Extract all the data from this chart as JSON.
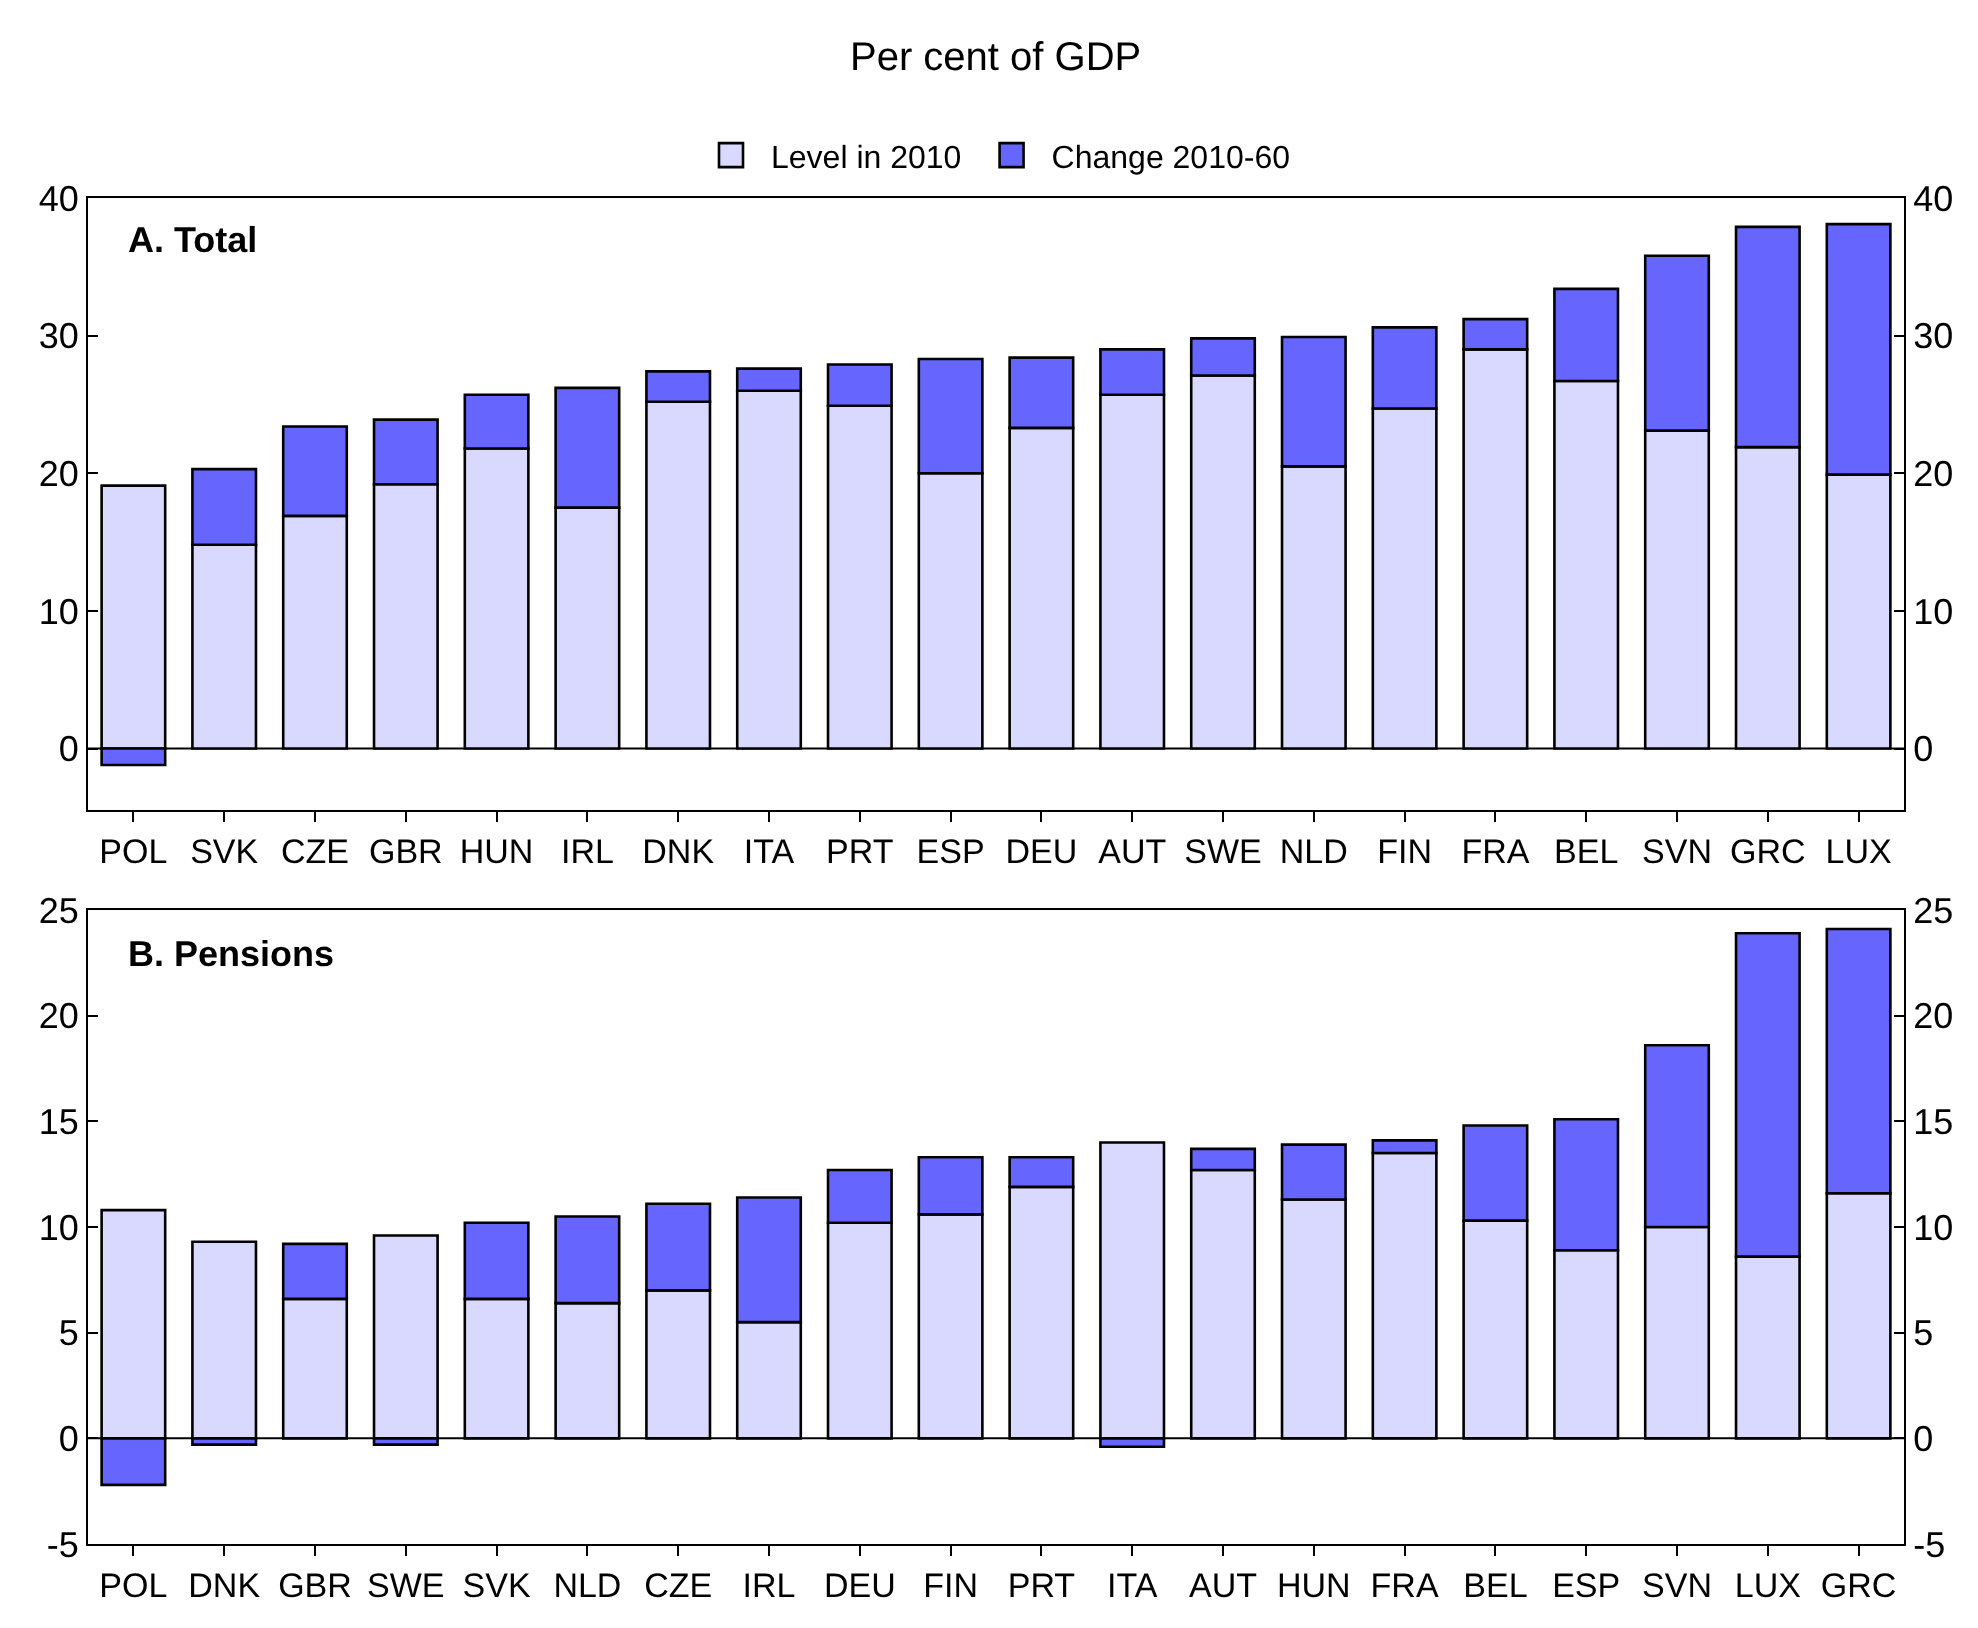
{
  "chart_data": [
    {
      "type": "bar",
      "title": "Per cent of GDP",
      "annotations": [
        "A. Total"
      ],
      "stacked": true,
      "legend": "top",
      "grid": false,
      "categories": [
        "POL",
        "SVK",
        "CZE",
        "GBR",
        "HUN",
        "IRL",
        "DNK",
        "ITA",
        "PRT",
        "ESP",
        "DEU",
        "AUT",
        "SWE",
        "NLD",
        "FIN",
        "FRA",
        "BEL",
        "SVN",
        "GRC",
        "LUX"
      ],
      "series": [
        {
          "name": "Level in 2010",
          "color": "#d9d9ff",
          "values": [
            19.1,
            14.8,
            16.9,
            19.2,
            21.8,
            17.5,
            25.2,
            26.0,
            24.9,
            20.0,
            23.3,
            25.7,
            27.1,
            20.5,
            24.7,
            29.0,
            26.7,
            23.1,
            21.9,
            19.9
          ]
        },
        {
          "name": "Change 2010-60",
          "color": "#6666ff",
          "values": [
            -1.2,
            5.5,
            6.5,
            4.7,
            3.9,
            8.7,
            2.2,
            1.6,
            3.0,
            8.3,
            5.1,
            3.3,
            2.7,
            9.4,
            5.9,
            2.2,
            6.7,
            12.7,
            16.0,
            18.2
          ]
        }
      ],
      "ref_lines": [
        {
          "axis": "y",
          "value": 0
        }
      ],
      "ylim": [
        -4.5,
        40
      ],
      "yticks": [
        0,
        10,
        20,
        30,
        40
      ],
      "y2lim": [
        -4.5,
        40
      ],
      "y2ticks": [
        0,
        10,
        20,
        30,
        40
      ]
    },
    {
      "type": "bar",
      "annotations": [
        "B. Pensions"
      ],
      "stacked": true,
      "grid": false,
      "categories": [
        "POL",
        "DNK",
        "GBR",
        "SWE",
        "SVK",
        "NLD",
        "CZE",
        "IRL",
        "DEU",
        "FIN",
        "PRT",
        "ITA",
        "AUT",
        "HUN",
        "FRA",
        "BEL",
        "ESP",
        "SVN",
        "LUX",
        "GRC"
      ],
      "series": [
        {
          "name": "Level in 2010",
          "color": "#d9d9ff",
          "values": [
            10.8,
            9.3,
            6.6,
            9.6,
            6.6,
            6.4,
            7.0,
            5.5,
            10.2,
            10.6,
            11.9,
            14.0,
            12.7,
            11.3,
            13.5,
            10.3,
            8.9,
            10.0,
            8.6,
            11.6
          ]
        },
        {
          "name": "Change 2010-60",
          "color": "#6666ff",
          "values": [
            -2.2,
            -0.3,
            2.6,
            -0.3,
            3.6,
            4.1,
            4.1,
            5.9,
            2.5,
            2.7,
            1.4,
            -0.4,
            1.0,
            2.6,
            0.6,
            4.5,
            6.2,
            8.6,
            15.3,
            12.5
          ]
        }
      ],
      "ref_lines": [
        {
          "axis": "y",
          "value": 0
        }
      ],
      "ylim": [
        -5,
        25
      ],
      "yticks": [
        -5,
        0,
        5,
        10,
        15,
        20,
        25
      ],
      "y2lim": [
        -5,
        25
      ],
      "y2ticks": [
        -5,
        0,
        5,
        10,
        15,
        20,
        25
      ]
    }
  ]
}
